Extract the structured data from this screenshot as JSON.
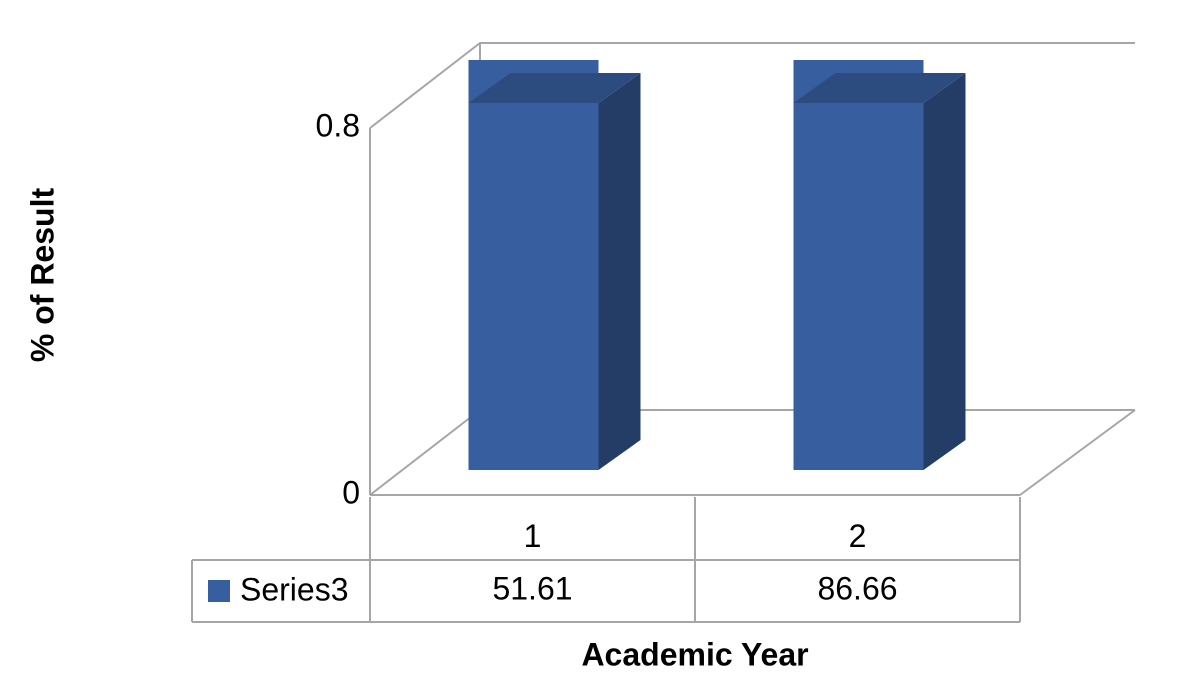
{
  "chart_data": {
    "type": "bar3d",
    "x_label": "Academic Year",
    "y_label": "% of Result",
    "categories": [
      "1",
      "2"
    ],
    "series": [
      {
        "name": "Series3",
        "color": "#375e9f",
        "values": [
          51.61,
          86.66
        ]
      }
    ],
    "ylim": [
      0,
      0.8
    ],
    "yticks": [
      0,
      0.8
    ],
    "data_table": true
  }
}
